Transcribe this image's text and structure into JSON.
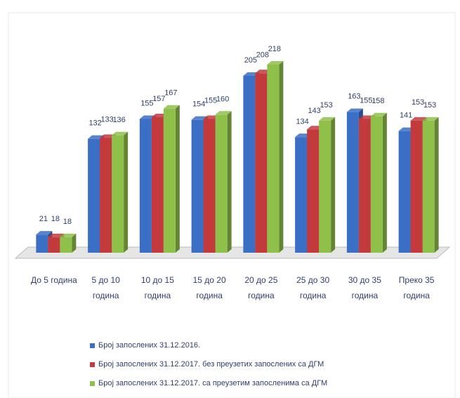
{
  "chart_data": {
    "type": "bar3d",
    "categories": [
      "До 5 година",
      "5 до 10 година",
      "10 до 15 година",
      "15 до 20 година",
      "20 до 25 година",
      "25 до 30 година",
      "30 до 35 година",
      "Преко 35 година"
    ],
    "series": [
      {
        "name": "Број запослених 31.12.2016.",
        "color": "#3b6fc6",
        "values": [
          21,
          132,
          155,
          154,
          205,
          134,
          163,
          141
        ]
      },
      {
        "name": "Број запослених 31.12.2017. без преузетих запослених са ДГМ",
        "color": "#c23a3c",
        "values": [
          18,
          133,
          157,
          155,
          208,
          143,
          155,
          153
        ]
      },
      {
        "name": "Број запослених 31.12.2017. са преузетим запосленима са ДГМ",
        "color": "#8fc04a",
        "values": [
          18,
          136,
          167,
          160,
          218,
          153,
          158,
          153
        ]
      }
    ],
    "legend": "bottom"
  }
}
